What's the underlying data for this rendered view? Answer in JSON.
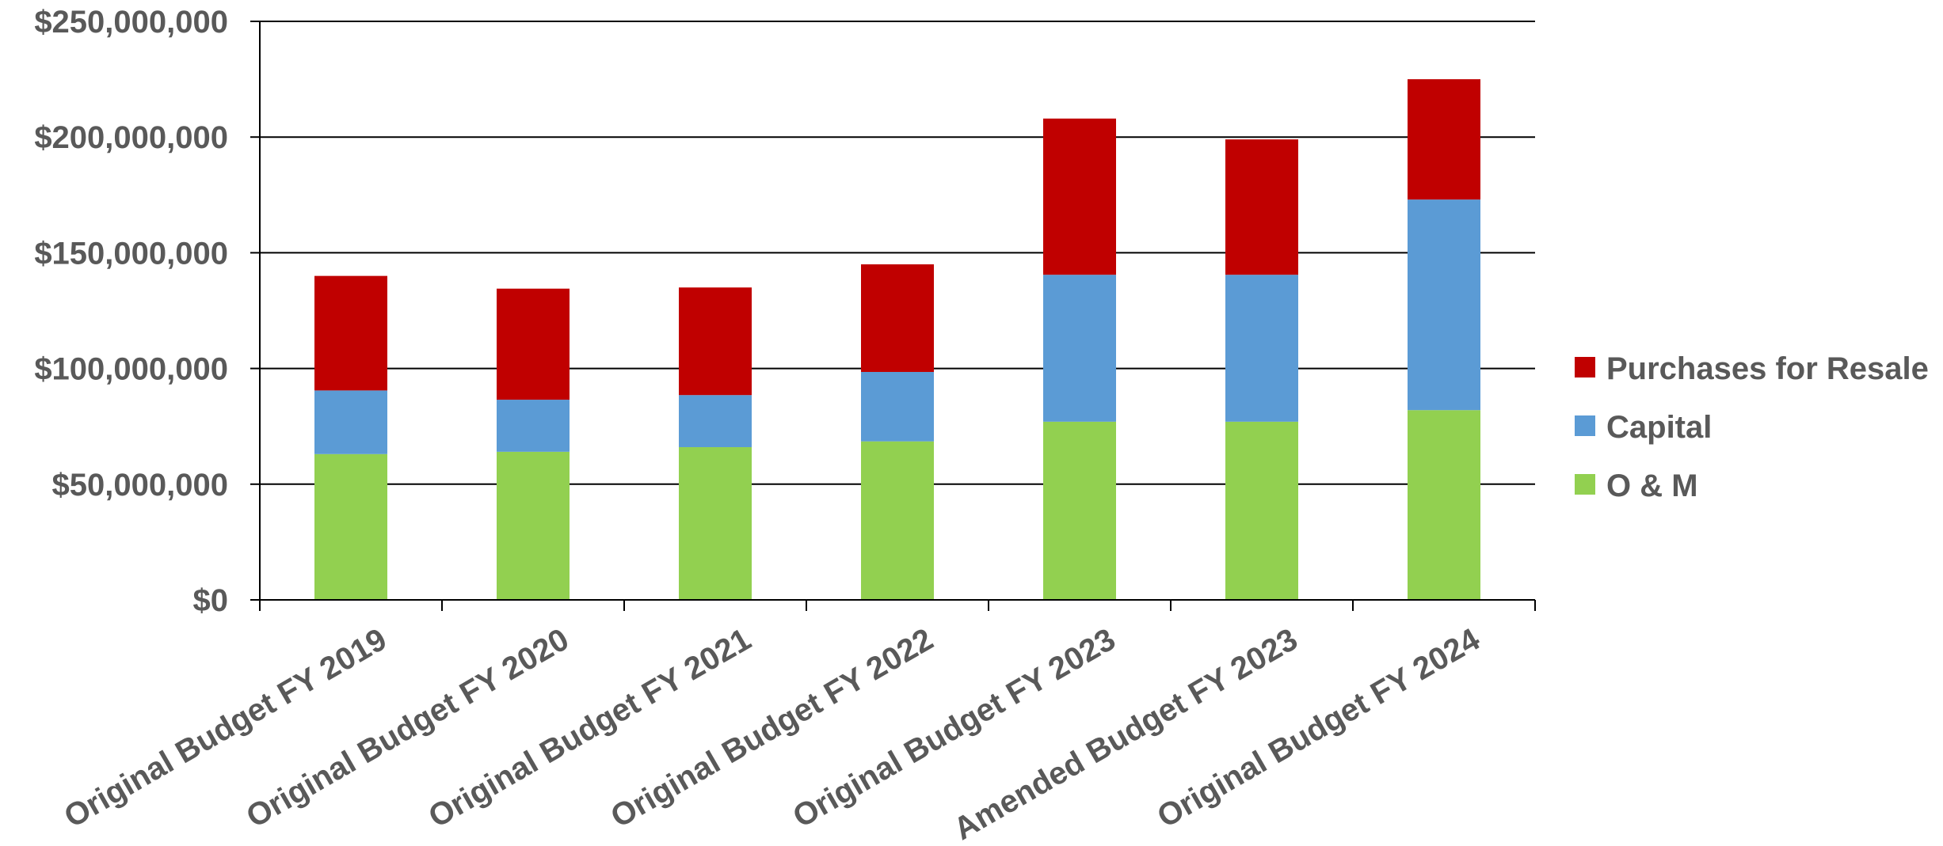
{
  "chart_data": {
    "type": "bar",
    "stacked": true,
    "title": "",
    "xlabel": "",
    "ylabel": "",
    "categories": [
      "Original Budget FY 2019",
      "Original Budget FY 2020",
      "Original Budget FY 2021",
      "Original Budget FY 2022",
      "Original Budget FY 2023",
      "Amended Budget FY 2023",
      "Original Budget FY 2024"
    ],
    "series": [
      {
        "name": "O & M",
        "color": "#92D050",
        "values": [
          63000000,
          64000000,
          66000000,
          68500000,
          77000000,
          77000000,
          82000000
        ]
      },
      {
        "name": "Capital",
        "color": "#5B9BD5",
        "values": [
          27500000,
          22500000,
          22500000,
          30000000,
          63500000,
          63500000,
          91000000
        ]
      },
      {
        "name": "Purchases for Resale",
        "color": "#C00000",
        "values": [
          49500000,
          48000000,
          46500000,
          46500000,
          67500000,
          58500000,
          52000000
        ]
      }
    ],
    "ylim": [
      0,
      250000000
    ],
    "yticks": [
      0,
      50000000,
      100000000,
      150000000,
      200000000,
      250000000
    ],
    "ytick_labels": [
      "$0",
      "$50,000,000",
      "$100,000,000",
      "$150,000,000",
      "$200,000,000",
      "$250,000,000"
    ],
    "grid": true,
    "legend_position": "right",
    "legend_order": [
      "Purchases for Resale",
      "Capital",
      "O & M"
    ]
  }
}
